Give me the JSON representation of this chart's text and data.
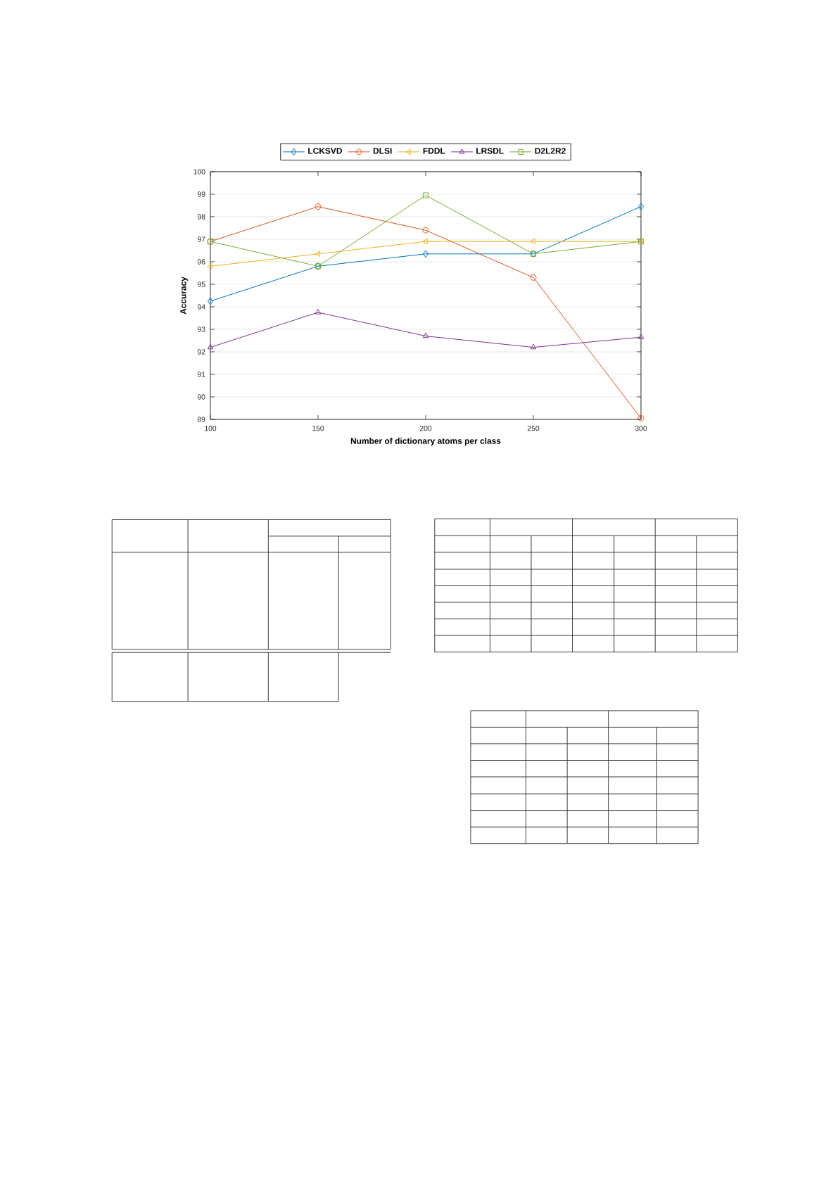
{
  "chart_data": {
    "type": "line",
    "xlabel": "Number of dictionary atoms per class",
    "ylabel": "Accuracy",
    "x": [
      100,
      150,
      200,
      250,
      300
    ],
    "series": [
      {
        "name": "LCKSVD",
        "color": "#0072bd",
        "marker": "diamond",
        "values": [
          94.25,
          95.8,
          96.35,
          96.35,
          98.45
        ]
      },
      {
        "name": "DLSI",
        "color": "#d95319",
        "marker": "circle",
        "values": [
          96.9,
          98.45,
          97.4,
          95.3,
          89.05
        ]
      },
      {
        "name": "FDDL",
        "color": "#edb120",
        "marker": "triangle-left",
        "values": [
          95.8,
          96.35,
          96.9,
          96.9,
          96.9
        ]
      },
      {
        "name": "LRSDL",
        "color": "#7e2f8e",
        "marker": "triangle",
        "values": [
          92.2,
          93.75,
          92.7,
          92.2,
          92.65
        ]
      },
      {
        "name": "D2L2R2",
        "color": "#77ac30",
        "marker": "square",
        "values": [
          96.9,
          95.8,
          98.95,
          96.35,
          96.9
        ]
      }
    ],
    "xlim": [
      100,
      300
    ],
    "ylim": [
      89,
      100
    ],
    "xticks": [
      100,
      150,
      200,
      250,
      300
    ],
    "yticks": [
      89,
      90,
      91,
      92,
      93,
      94,
      95,
      96,
      97,
      98,
      99,
      100
    ],
    "grid": "y",
    "legend": "top",
    "line_style": "solid"
  }
}
